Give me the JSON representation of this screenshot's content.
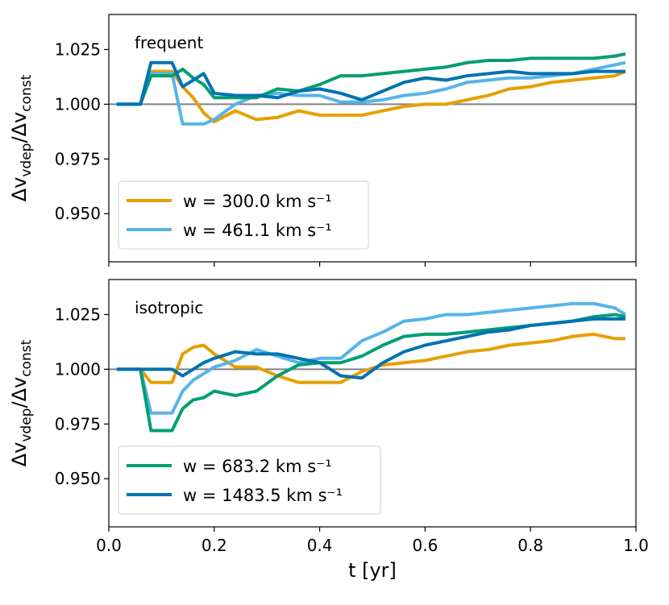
{
  "chart_data": [
    {
      "type": "line",
      "annotation": "frequent",
      "x": [
        0.015,
        0.06,
        0.08,
        0.1,
        0.12,
        0.14,
        0.16,
        0.18,
        0.2,
        0.24,
        0.28,
        0.32,
        0.36,
        0.4,
        0.44,
        0.48,
        0.52,
        0.56,
        0.6,
        0.64,
        0.68,
        0.72,
        0.76,
        0.8,
        0.84,
        0.88,
        0.92,
        0.96,
        0.98
      ],
      "series": [
        {
          "name": "w = 300.0 km s⁻¹",
          "color": "#E69F00",
          "values": [
            1.0,
            1.0,
            1.015,
            1.015,
            1.015,
            1.008,
            1.003,
            0.996,
            0.992,
            0.997,
            0.993,
            0.994,
            0.997,
            0.995,
            0.995,
            0.995,
            0.997,
            0.999,
            1.0,
            1.0,
            1.002,
            1.004,
            1.007,
            1.008,
            1.01,
            1.011,
            1.012,
            1.013,
            1.015
          ]
        },
        {
          "name": "w = 461.1 km s⁻¹",
          "color": "#56B4E9",
          "values": [
            1.0,
            1.0,
            1.014,
            1.014,
            1.014,
            0.991,
            0.991,
            0.991,
            0.993,
            1.0,
            1.004,
            1.005,
            1.004,
            1.004,
            1.001,
            1.001,
            1.002,
            1.004,
            1.005,
            1.007,
            1.01,
            1.011,
            1.012,
            1.012,
            1.013,
            1.014,
            1.016,
            1.018,
            1.019
          ]
        },
        {
          "color": "#009E73",
          "values": [
            1.0,
            1.0,
            1.013,
            1.013,
            1.013,
            1.016,
            1.012,
            1.009,
            1.003,
            1.003,
            1.003,
            1.007,
            1.006,
            1.009,
            1.013,
            1.013,
            1.014,
            1.015,
            1.016,
            1.017,
            1.019,
            1.02,
            1.02,
            1.021,
            1.021,
            1.021,
            1.021,
            1.022,
            1.023
          ]
        },
        {
          "color": "#0072B2",
          "values": [
            1.0,
            1.0,
            1.019,
            1.019,
            1.019,
            1.008,
            1.011,
            1.014,
            1.005,
            1.004,
            1.004,
            1.003,
            1.006,
            1.007,
            1.005,
            1.002,
            1.006,
            1.01,
            1.012,
            1.011,
            1.013,
            1.014,
            1.015,
            1.014,
            1.014,
            1.014,
            1.015,
            1.015,
            1.015
          ]
        }
      ],
      "reference_line": {
        "value": 1.0,
        "color": "#808080"
      },
      "xlim": [
        0,
        1
      ],
      "xticks": [
        0,
        0.2,
        0.4,
        0.6,
        0.8,
        1
      ],
      "xticklabels": false,
      "ylim": [
        0.928,
        1.041
      ],
      "yticks": [
        {
          "value": 0.95,
          "label": "0.950"
        },
        0.975,
        {
          "value": 1.0,
          "label": "1.000"
        },
        1.025
      ],
      "ylabel": [
        "Δv",
        "vdep",
        "/Δv",
        "const"
      ],
      "legend": "lower left"
    },
    {
      "type": "line",
      "annotation": "isotropic",
      "x": [
        0.015,
        0.06,
        0.08,
        0.1,
        0.12,
        0.14,
        0.16,
        0.18,
        0.2,
        0.24,
        0.28,
        0.32,
        0.36,
        0.4,
        0.44,
        0.48,
        0.52,
        0.56,
        0.6,
        0.64,
        0.68,
        0.72,
        0.76,
        0.8,
        0.84,
        0.88,
        0.92,
        0.96,
        0.98
      ],
      "series": [
        {
          "color": "#E69F00",
          "values": [
            1.0,
            1.0,
            0.994,
            0.994,
            0.994,
            1.007,
            1.01,
            1.011,
            1.007,
            1.001,
            1.001,
            0.997,
            0.994,
            0.994,
            0.994,
            0.999,
            1.002,
            1.003,
            1.004,
            1.006,
            1.008,
            1.009,
            1.011,
            1.012,
            1.013,
            1.015,
            1.016,
            1.014,
            1.014
          ]
        },
        {
          "color": "#56B4E9",
          "values": [
            1.0,
            1.0,
            0.98,
            0.98,
            0.98,
            0.99,
            0.995,
            0.998,
            1.001,
            1.004,
            1.009,
            1.006,
            1.003,
            1.005,
            1.005,
            1.013,
            1.017,
            1.022,
            1.023,
            1.025,
            1.025,
            1.026,
            1.027,
            1.028,
            1.029,
            1.03,
            1.03,
            1.028,
            1.025
          ]
        },
        {
          "name": "w = 683.2 km s⁻¹",
          "color": "#009E73",
          "values": [
            1.0,
            1.0,
            0.972,
            0.972,
            0.972,
            0.982,
            0.986,
            0.987,
            0.99,
            0.988,
            0.99,
            0.997,
            1.002,
            1.003,
            1.003,
            1.006,
            1.011,
            1.015,
            1.016,
            1.016,
            1.017,
            1.018,
            1.019,
            1.02,
            1.021,
            1.022,
            1.024,
            1.025,
            1.024
          ]
        },
        {
          "name": "w = 1483.5 km s⁻¹",
          "color": "#0072B2",
          "values": [
            1.0,
            1.0,
            1.0,
            1.0,
            1.0,
            0.997,
            1.0,
            1.003,
            1.005,
            1.008,
            1.007,
            1.007,
            1.005,
            1.003,
            0.997,
            0.996,
            1.003,
            1.008,
            1.011,
            1.013,
            1.015,
            1.017,
            1.018,
            1.02,
            1.021,
            1.022,
            1.023,
            1.023,
            1.023
          ]
        }
      ],
      "reference_line": {
        "value": 1.0,
        "color": "#808080"
      },
      "xlim": [
        0,
        1
      ],
      "xticks": [
        {
          "value": 0,
          "label": "0.0"
        },
        0.2,
        0.4,
        0.6,
        0.8,
        {
          "value": 1,
          "label": "1.0"
        }
      ],
      "xticklabels": true,
      "xlabel": "t [yr]",
      "ylim": [
        0.928,
        1.041
      ],
      "yticks": [
        {
          "value": 0.95,
          "label": "0.950"
        },
        0.975,
        {
          "value": 1.0,
          "label": "1.000"
        },
        1.025
      ],
      "ylabel": [
        "Δv",
        "vdep",
        "/Δv",
        "const"
      ],
      "legend": "lower left"
    }
  ]
}
